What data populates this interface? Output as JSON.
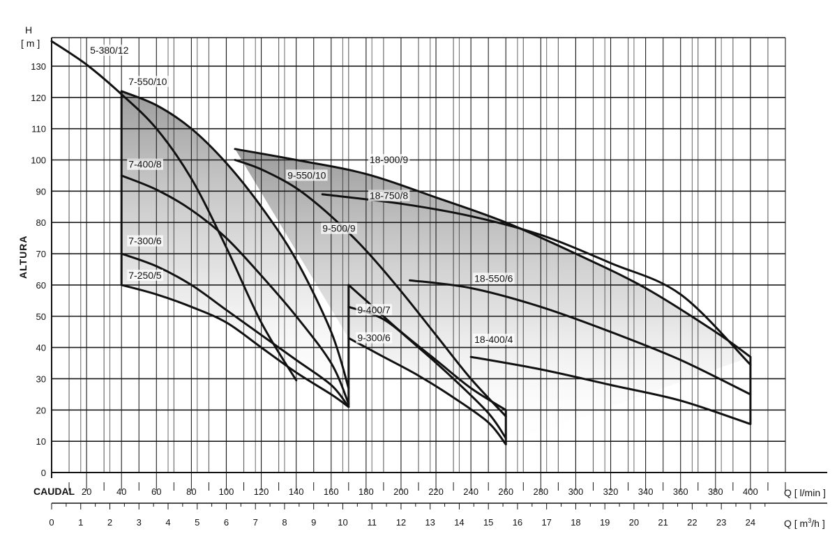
{
  "chart_data": {
    "type": "line",
    "y_title": "ALTURA",
    "y_unit_top": "H",
    "y_unit_bottom": "[ m ]",
    "x_title": "CAUDAL",
    "x_unit_lmin": "Q [ l/min ]",
    "x_unit_m3h_prefix": "Q [ m",
    "x_unit_m3h_sup": "3",
    "x_unit_m3h_suffix": "/h ]",
    "ylim": [
      0,
      140
    ],
    "y_ticks": [
      0,
      10,
      20,
      30,
      40,
      50,
      60,
      70,
      80,
      90,
      100,
      110,
      120,
      130
    ],
    "x_lmin_range": [
      0,
      420
    ],
    "x_lmin_ticks": [
      20,
      40,
      60,
      80,
      100,
      120,
      140,
      160,
      180,
      200,
      220,
      240,
      260,
      280,
      300,
      320,
      340,
      360,
      380,
      400
    ],
    "x_m3h_ticks": [
      0,
      1,
      2,
      3,
      4,
      5,
      6,
      7,
      8,
      9,
      10,
      11,
      12,
      13,
      14,
      15,
      16,
      17,
      18,
      19,
      20,
      21,
      22,
      23,
      24
    ],
    "grid": true,
    "shaded_regions": [
      {
        "top": "7-550/10",
        "bottom": "7-250/5",
        "x_range": [
          40,
          170
        ]
      },
      {
        "top": "18-900/9",
        "bottom": "9-300/6",
        "x_range": [
          105,
          400
        ]
      }
    ],
    "series": [
      {
        "name": "5-380/12",
        "points": [
          [
            0,
            138
          ],
          [
            20,
            130.5
          ],
          [
            40,
            121
          ],
          [
            60,
            110
          ],
          [
            80,
            94
          ],
          [
            100,
            72
          ],
          [
            120,
            48
          ],
          [
            140,
            29.5
          ]
        ]
      },
      {
        "name": "7-550/10",
        "points": [
          [
            40,
            122
          ],
          [
            60,
            117.5
          ],
          [
            80,
            110
          ],
          [
            100,
            99
          ],
          [
            120,
            85
          ],
          [
            140,
            68
          ],
          [
            160,
            45
          ],
          [
            170,
            27
          ]
        ]
      },
      {
        "name": "7-400/8",
        "points": [
          [
            40,
            95
          ],
          [
            60,
            90.5
          ],
          [
            80,
            84
          ],
          [
            100,
            75
          ],
          [
            120,
            63
          ],
          [
            140,
            50
          ],
          [
            160,
            35
          ],
          [
            170,
            22
          ]
        ]
      },
      {
        "name": "7-300/6",
        "points": [
          [
            40,
            70
          ],
          [
            60,
            66
          ],
          [
            80,
            60
          ],
          [
            100,
            52
          ],
          [
            120,
            44
          ],
          [
            140,
            36
          ],
          [
            160,
            28
          ],
          [
            170,
            21
          ]
        ]
      },
      {
        "name": "7-250/5",
        "points": [
          [
            40,
            60
          ],
          [
            60,
            57
          ],
          [
            80,
            53
          ],
          [
            100,
            48
          ],
          [
            120,
            40
          ],
          [
            140,
            32
          ],
          [
            160,
            25
          ],
          [
            170,
            21
          ]
        ]
      },
      {
        "name": "18-900/9",
        "points": [
          [
            105,
            103.5
          ],
          [
            140,
            100
          ],
          [
            180,
            95.5
          ],
          [
            220,
            88
          ],
          [
            260,
            80
          ],
          [
            300,
            70
          ],
          [
            340,
            59
          ],
          [
            380,
            45
          ],
          [
            400,
            37
          ]
        ]
      },
      {
        "name": "9-550/10",
        "points": [
          [
            105,
            100
          ],
          [
            120,
            97
          ],
          [
            140,
            91
          ],
          [
            160,
            82
          ],
          [
            180,
            71
          ],
          [
            200,
            58
          ],
          [
            220,
            44
          ],
          [
            240,
            30
          ],
          [
            260,
            18
          ]
        ]
      },
      {
        "name": "9-500/9",
        "points": [
          [
            170,
            60
          ],
          [
            180,
            55
          ],
          [
            200,
            45
          ],
          [
            220,
            36
          ],
          [
            240,
            27
          ],
          [
            260,
            20
          ]
        ]
      },
      {
        "name": "18-750/8",
        "points": [
          [
            155,
            89
          ],
          [
            200,
            86
          ],
          [
            240,
            82
          ],
          [
            280,
            76
          ],
          [
            320,
            67
          ],
          [
            360,
            57
          ],
          [
            400,
            34.5
          ]
        ]
      },
      {
        "name": "18-550/6",
        "points": [
          [
            205,
            61.5
          ],
          [
            240,
            59
          ],
          [
            280,
            53
          ],
          [
            320,
            45
          ],
          [
            360,
            36
          ],
          [
            400,
            25
          ]
        ]
      },
      {
        "name": "9-400/7",
        "points": [
          [
            170,
            53
          ],
          [
            190,
            49
          ],
          [
            210,
            40
          ],
          [
            230,
            30
          ],
          [
            250,
            19
          ],
          [
            260,
            11
          ]
        ]
      },
      {
        "name": "9-300/6",
        "points": [
          [
            170,
            43
          ],
          [
            190,
            37
          ],
          [
            210,
            31
          ],
          [
            230,
            24
          ],
          [
            250,
            16
          ],
          [
            260,
            9
          ]
        ]
      },
      {
        "name": "18-400/4",
        "points": [
          [
            240,
            37
          ],
          [
            280,
            33
          ],
          [
            320,
            28
          ],
          [
            360,
            23
          ],
          [
            400,
            15.5
          ]
        ]
      }
    ],
    "labels": [
      {
        "text": "5-380/12",
        "x": 22,
        "y": 134
      },
      {
        "text": "7-550/10",
        "x": 44,
        "y": 124
      },
      {
        "text": "7-400/8",
        "x": 44,
        "y": 97.5
      },
      {
        "text": "7-300/6",
        "x": 44,
        "y": 73
      },
      {
        "text": "7-250/5",
        "x": 44,
        "y": 62
      },
      {
        "text": "18-900/9",
        "x": 182,
        "y": 99
      },
      {
        "text": "9-550/10",
        "x": 135,
        "y": 94
      },
      {
        "text": "18-750/8",
        "x": 182,
        "y": 87.5
      },
      {
        "text": "9-500/9",
        "x": 155,
        "y": 77
      },
      {
        "text": "18-550/6",
        "x": 242,
        "y": 61
      },
      {
        "text": "9-400/7",
        "x": 175,
        "y": 51
      },
      {
        "text": "9-300/6",
        "x": 175,
        "y": 42
      },
      {
        "text": "18-400/4",
        "x": 242,
        "y": 41.5
      }
    ]
  }
}
